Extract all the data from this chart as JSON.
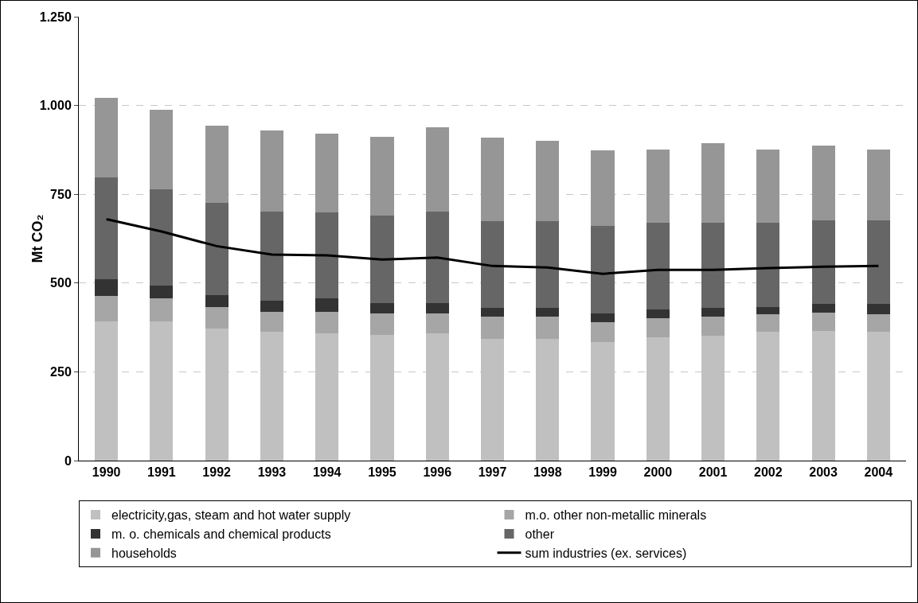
{
  "chart_data": {
    "type": "bar",
    "stacked": true,
    "ylabel": "Mt CO₂",
    "categories": [
      "1990",
      "1991",
      "1992",
      "1993",
      "1994",
      "1995",
      "1996",
      "1997",
      "1998",
      "1999",
      "2000",
      "2001",
      "2002",
      "2003",
      "2004"
    ],
    "series": [
      {
        "name": "electricity,gas, steam and hot water supply",
        "color": "#c0c0c0",
        "values": [
          392,
          392,
          372,
          364,
          359,
          354,
          359,
          343,
          343,
          333,
          347,
          351,
          363,
          366,
          363
        ]
      },
      {
        "name": "m.o. other non-metallic minerals",
        "color": "#a6a6a6",
        "values": [
          72,
          64,
          61,
          54,
          59,
          60,
          55,
          63,
          63,
          57,
          55,
          55,
          49,
          50,
          49
        ]
      },
      {
        "name": "m. o. chemicals and chemical products",
        "color": "#333333",
        "values": [
          46,
          37,
          33,
          33,
          38,
          29,
          29,
          23,
          23,
          24,
          24,
          23,
          20,
          26,
          30
        ]
      },
      {
        "name": "other",
        "color": "#666666",
        "values": [
          288,
          272,
          259,
          250,
          242,
          246,
          258,
          246,
          246,
          246,
          244,
          241,
          238,
          234,
          234
        ]
      },
      {
        "name": "households",
        "color": "#969696",
        "values": [
          224,
          223,
          219,
          229,
          222,
          223,
          237,
          235,
          225,
          213,
          207,
          223,
          207,
          211,
          201
        ]
      },
      {
        "name": "sum industries (ex. services)",
        "type": "line",
        "color": "#000000",
        "values": [
          680,
          645,
          604,
          580,
          578,
          566,
          572,
          548,
          544,
          526,
          537,
          537,
          542,
          546,
          548
        ]
      }
    ],
    "ylim": [
      0,
      1250
    ],
    "yticks": [
      0,
      250,
      500,
      750,
      {
        "value": 1000,
        "label": "1.000"
      },
      {
        "value": 1250,
        "label": "1.250"
      }
    ],
    "grid": "y",
    "legend": "bottom",
    "marker": "none",
    "line_style": "solid"
  }
}
